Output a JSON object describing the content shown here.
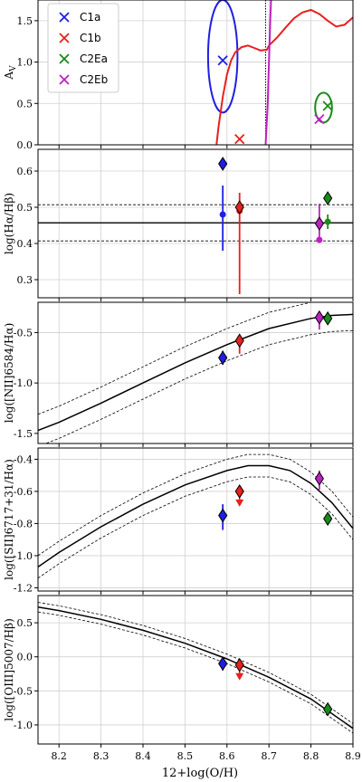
{
  "figure": {
    "xlabel": "12+log(O/H)",
    "xlim": [
      8.15,
      8.9
    ],
    "xticks": [
      8.2,
      8.3,
      8.4,
      8.5,
      8.6,
      8.7,
      8.8,
      8.9
    ],
    "xtick_labels": [
      "8.2",
      "8.3",
      "8.4",
      "8.5",
      "8.6",
      "8.7",
      "8.8",
      "8.9"
    ]
  },
  "legend": {
    "entries": [
      {
        "label": "C1a",
        "color": "#1f1fe0"
      },
      {
        "label": "C1b",
        "color": "#e8201e"
      },
      {
        "label": "C2Ea",
        "color": "#1a8a1a"
      },
      {
        "label": "C2Eb",
        "color": "#c020c0"
      }
    ]
  },
  "colors": {
    "C1a": "#1f1fe0",
    "C1b": "#e8201e",
    "C2Ea": "#1a8a1a",
    "C2Eb": "#c020c0",
    "model": "#000000"
  },
  "chart_data": [
    {
      "type": "line",
      "ylabel": "A_V",
      "ylim": [
        0,
        1.75
      ],
      "yticks": [
        0,
        0.5,
        1.0,
        1.5
      ],
      "ytick_labels": [
        "0.0",
        "0.5",
        "1.0",
        "1.5"
      ],
      "legend_position": "top-left",
      "points": [
        {
          "name": "C1a",
          "x": 8.59,
          "y": 1.02
        },
        {
          "name": "C1b",
          "x": 8.63,
          "y": 0.07
        },
        {
          "name": "C2Ea",
          "x": 8.84,
          "y": 0.47
        },
        {
          "name": "C2Eb",
          "x": 8.82,
          "y": 0.31
        }
      ],
      "contours": [
        {
          "name": "C1a",
          "cx": 8.59,
          "cy": 1.07,
          "rx": 0.035,
          "ry": 0.68
        },
        {
          "name": "C2Ea",
          "cx": 8.83,
          "cy": 0.45,
          "rx": 0.02,
          "ry": 0.18
        }
      ],
      "curves": [
        {
          "name": "C1b",
          "x": [
            8.575,
            8.58,
            8.59,
            8.6,
            8.61,
            8.62,
            8.635,
            8.65,
            8.665,
            8.68,
            8.695,
            8.7,
            8.72,
            8.74,
            8.76,
            8.78,
            8.8,
            8.82,
            8.84,
            8.86,
            8.88,
            8.9
          ],
          "y": [
            0.0,
            0.22,
            0.58,
            0.85,
            1.02,
            1.12,
            1.18,
            1.2,
            1.17,
            1.14,
            1.15,
            1.2,
            1.3,
            1.42,
            1.53,
            1.6,
            1.63,
            1.58,
            1.5,
            1.43,
            1.45,
            1.54
          ]
        },
        {
          "name": "C2Eb",
          "x": [
            8.692,
            8.697,
            8.7,
            8.703,
            8.705
          ],
          "y": [
            0.0,
            0.5,
            1.0,
            1.5,
            1.75
          ]
        }
      ],
      "vline": {
        "x": 8.692
      }
    },
    {
      "type": "scatter",
      "ylabel": "log(Hα/Hβ)",
      "ylim": [
        0.25,
        0.66
      ],
      "yticks": [
        0.3,
        0.4,
        0.5,
        0.6
      ],
      "ytick_labels": [
        "0.3",
        "0.4",
        "0.5",
        "0.6"
      ],
      "hline": {
        "y": 0.457,
        "band": 0.05
      },
      "points": [
        {
          "name": "C1a",
          "marker": "circle",
          "x": 8.59,
          "y": 0.48,
          "err": [
            0.1,
            0.08
          ]
        },
        {
          "name": "C1a",
          "marker": "diamond",
          "x": 8.59,
          "y": 0.62
        },
        {
          "name": "C1b",
          "marker": "circle",
          "x": 8.63,
          "y": 0.49,
          "err": [
            0.23,
            0.05
          ]
        },
        {
          "name": "C1b",
          "marker": "diamond",
          "x": 8.63,
          "y": 0.5
        },
        {
          "name": "C2Eb",
          "marker": "circle",
          "x": 8.82,
          "y": 0.41,
          "err": [
            0.0,
            0.1
          ]
        },
        {
          "name": "C2Eb",
          "marker": "diamond",
          "x": 8.82,
          "y": 0.455
        },
        {
          "name": "C2Ea",
          "marker": "circle",
          "x": 8.84,
          "y": 0.46,
          "err": [
            0.02,
            0.02
          ]
        },
        {
          "name": "C2Ea",
          "marker": "diamond",
          "x": 8.84,
          "y": 0.525
        }
      ]
    },
    {
      "type": "scatter",
      "ylabel": "log([NII]6584/Hα)",
      "ylim": [
        -1.6,
        -0.2
      ],
      "yticks": [
        -1.5,
        -1.0,
        -0.5
      ],
      "ytick_labels": [
        "-1.5",
        "-1.0",
        "-0.5"
      ],
      "curve": {
        "x": [
          8.15,
          8.2,
          8.3,
          8.4,
          8.5,
          8.6,
          8.7,
          8.8,
          8.85,
          8.9
        ],
        "y": [
          -1.47,
          -1.39,
          -1.2,
          -1.0,
          -0.8,
          -0.62,
          -0.46,
          -0.36,
          -0.33,
          -0.32
        ]
      },
      "band": 0.16,
      "points": [
        {
          "name": "C1a",
          "marker": "circle",
          "x": 8.59,
          "y": -0.75,
          "err": [
            0.07,
            0.07
          ]
        },
        {
          "name": "C1a",
          "marker": "diamond",
          "x": 8.59,
          "y": -0.75
        },
        {
          "name": "C1b",
          "marker": "circle",
          "x": 8.63,
          "y": -0.58,
          "err": [
            0.13,
            0.06
          ]
        },
        {
          "name": "C1b",
          "marker": "diamond",
          "x": 8.63,
          "y": -0.58
        },
        {
          "name": "C2Eb",
          "marker": "circle",
          "x": 8.82,
          "y": -0.35,
          "err": [
            0.12,
            0.05
          ]
        },
        {
          "name": "C2Eb",
          "marker": "diamond",
          "x": 8.82,
          "y": -0.35
        },
        {
          "name": "C2Ea",
          "marker": "circle",
          "x": 8.84,
          "y": -0.36,
          "err": [
            0.03,
            0.03
          ]
        },
        {
          "name": "C2Ea",
          "marker": "diamond",
          "x": 8.84,
          "y": -0.36
        }
      ]
    },
    {
      "type": "scatter",
      "ylabel": "log([SII]6717+31/Hα)",
      "ylim": [
        -1.22,
        -0.33
      ],
      "yticks": [
        -1.2,
        -1.0,
        -0.8,
        -0.6,
        -0.4
      ],
      "ytick_labels": [
        "-1.2",
        "-1.0",
        "-0.8",
        "-0.6",
        "-0.4"
      ],
      "curve": {
        "x": [
          8.15,
          8.2,
          8.3,
          8.4,
          8.5,
          8.6,
          8.65,
          8.7,
          8.75,
          8.8,
          8.85,
          8.9
        ],
        "y": [
          -1.07,
          -0.98,
          -0.82,
          -0.68,
          -0.56,
          -0.47,
          -0.44,
          -0.44,
          -0.47,
          -0.55,
          -0.67,
          -0.83
        ]
      },
      "band": 0.07,
      "points": [
        {
          "name": "C1a",
          "marker": "diamond",
          "x": 8.59,
          "y": -0.75,
          "err": [
            0.09,
            0.07
          ]
        },
        {
          "name": "C1b",
          "marker": "diamond",
          "x": 8.63,
          "y": -0.6,
          "upper_limit": true
        },
        {
          "name": "C2Eb",
          "marker": "diamond",
          "x": 8.82,
          "y": -0.52,
          "err": [
            0.07,
            0.05
          ]
        },
        {
          "name": "C2Ea",
          "marker": "diamond",
          "x": 8.84,
          "y": -0.77,
          "err": [
            0.04,
            0.03
          ]
        }
      ]
    },
    {
      "type": "scatter",
      "ylabel": "log([OIII]5007/Hβ)",
      "ylim": [
        -1.28,
        0.9
      ],
      "yticks": [
        -1.0,
        -0.5,
        0.0,
        0.5
      ],
      "ytick_labels": [
        "-1.0",
        "-0.5",
        "0.0",
        "0.5"
      ],
      "curve": {
        "x": [
          8.15,
          8.2,
          8.3,
          8.4,
          8.5,
          8.6,
          8.7,
          8.8,
          8.9
        ],
        "y": [
          0.73,
          0.68,
          0.55,
          0.39,
          0.2,
          -0.03,
          -0.3,
          -0.62,
          -1.05
        ]
      },
      "band": 0.07,
      "points": [
        {
          "name": "C1a",
          "marker": "diamond",
          "x": 8.59,
          "y": -0.1,
          "err": [
            0.1,
            0.07
          ]
        },
        {
          "name": "C1b",
          "marker": "diamond",
          "x": 8.63,
          "y": -0.12,
          "upper_limit": true
        },
        {
          "name": "C2Ea",
          "marker": "diamond",
          "x": 8.84,
          "y": -0.77,
          "err": [
            0.05,
            0.04
          ]
        }
      ]
    }
  ]
}
